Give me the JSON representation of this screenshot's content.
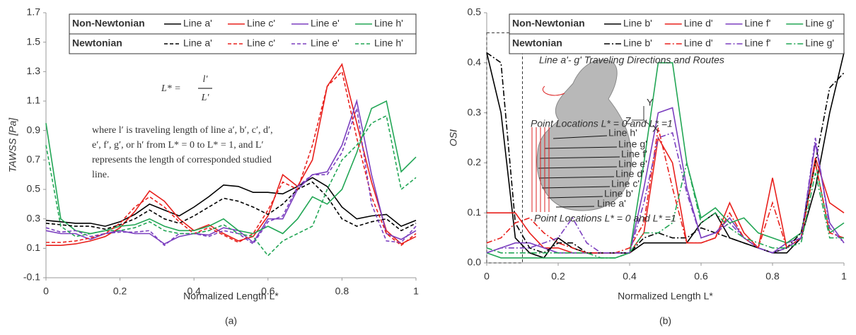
{
  "chart_data": [
    {
      "type": "line",
      "panel_label": "(a)",
      "xlabel": "Normalized Length L*",
      "ylabel": "TAWSS [Pa]",
      "xlim": [
        0,
        1
      ],
      "xticks": [
        0,
        0.2,
        0.4,
        0.6,
        0.8,
        1
      ],
      "ylim": [
        -0.1,
        1.7
      ],
      "yticks": [
        -0.1,
        0.1,
        0.3,
        0.5,
        0.7,
        0.9,
        1.1,
        1.3,
        1.5,
        1.7
      ],
      "x": [
        0,
        0.04,
        0.08,
        0.12,
        0.16,
        0.2,
        0.24,
        0.28,
        0.32,
        0.36,
        0.4,
        0.44,
        0.48,
        0.52,
        0.56,
        0.6,
        0.64,
        0.68,
        0.72,
        0.76,
        0.8,
        0.84,
        0.88,
        0.92,
        0.96,
        1
      ],
      "groups": [
        {
          "name": "Non-Newtonian",
          "dash": "solid",
          "series": [
            {
              "name": "Line a'",
              "color": "#000000",
              "values": [
                0.29,
                0.28,
                0.27,
                0.27,
                0.25,
                0.28,
                0.33,
                0.4,
                0.36,
                0.32,
                0.38,
                0.45,
                0.53,
                0.52,
                0.48,
                0.48,
                0.47,
                0.52,
                0.58,
                0.52,
                0.38,
                0.3,
                0.32,
                0.33,
                0.25,
                0.29
              ]
            },
            {
              "name": "Line c'",
              "color": "#e8201c",
              "values": [
                0.12,
                0.12,
                0.13,
                0.15,
                0.18,
                0.24,
                0.35,
                0.49,
                0.42,
                0.3,
                0.22,
                0.26,
                0.2,
                0.15,
                0.18,
                0.32,
                0.6,
                0.52,
                0.7,
                1.2,
                1.35,
                0.95,
                0.55,
                0.22,
                0.13,
                0.18
              ]
            },
            {
              "name": "Line e'",
              "color": "#7b3fbf",
              "values": [
                0.22,
                0.2,
                0.2,
                0.16,
                0.2,
                0.22,
                0.2,
                0.2,
                0.13,
                0.18,
                0.2,
                0.19,
                0.24,
                0.22,
                0.14,
                0.3,
                0.3,
                0.5,
                0.6,
                0.62,
                0.8,
                1.1,
                0.6,
                0.2,
                0.16,
                0.22
              ]
            },
            {
              "name": "Line h'",
              "color": "#22a655",
              "values": [
                0.95,
                0.3,
                0.22,
                0.2,
                0.22,
                0.25,
                0.26,
                0.3,
                0.25,
                0.22,
                0.22,
                0.25,
                0.3,
                0.22,
                0.2,
                0.25,
                0.2,
                0.3,
                0.45,
                0.4,
                0.5,
                0.75,
                1.05,
                1.1,
                0.62,
                0.72
              ]
            }
          ]
        },
        {
          "name": "Newtonian",
          "dash": "dash",
          "series": [
            {
              "name": "Line a'",
              "color": "#000000",
              "values": [
                0.27,
                0.26,
                0.25,
                0.25,
                0.23,
                0.26,
                0.3,
                0.36,
                0.3,
                0.27,
                0.32,
                0.38,
                0.44,
                0.42,
                0.38,
                0.33,
                0.4,
                0.5,
                0.55,
                0.45,
                0.3,
                0.25,
                0.28,
                0.3,
                0.22,
                0.27
              ]
            },
            {
              "name": "Line c'",
              "color": "#e8201c",
              "values": [
                0.14,
                0.14,
                0.15,
                0.17,
                0.2,
                0.27,
                0.38,
                0.45,
                0.38,
                0.28,
                0.2,
                0.24,
                0.19,
                0.14,
                0.2,
                0.36,
                0.55,
                0.5,
                0.8,
                1.2,
                1.3,
                0.85,
                0.45,
                0.2,
                0.12,
                0.2
              ]
            },
            {
              "name": "Line e'",
              "color": "#7b3fbf",
              "values": [
                0.24,
                0.21,
                0.22,
                0.18,
                0.2,
                0.21,
                0.21,
                0.22,
                0.12,
                0.2,
                0.2,
                0.18,
                0.22,
                0.2,
                0.13,
                0.28,
                0.32,
                0.52,
                0.6,
                0.6,
                0.75,
                1.05,
                0.4,
                0.15,
                0.14,
                0.25
              ]
            },
            {
              "name": "Line h'",
              "color": "#22a655",
              "values": [
                0.8,
                0.25,
                0.18,
                0.2,
                0.22,
                0.22,
                0.24,
                0.28,
                0.22,
                0.2,
                0.2,
                0.22,
                0.26,
                0.2,
                0.18,
                0.05,
                0.15,
                0.2,
                0.25,
                0.5,
                0.7,
                0.8,
                0.95,
                1.0,
                0.5,
                0.58
              ]
            }
          ]
        }
      ],
      "formula": {
        "lhs": "L* =",
        "num": "l′",
        "den": "L′"
      },
      "note_lines": [
        "where l′ is traveling length of line a′, b′, c′, d′,",
        "e′, f′, g′, or h′ from L* = 0 to L* = 1, and L′",
        "represents the length of corresponded studied",
        "line."
      ]
    },
    {
      "type": "line",
      "panel_label": "(b)",
      "xlabel": "Normalized Length L*",
      "ylabel": "OSI",
      "xlim": [
        0,
        1
      ],
      "xticks": [
        0,
        0.2,
        0.4,
        0.6,
        0.8,
        1
      ],
      "ylim": [
        0,
        0.5
      ],
      "yticks": [
        {
          "value": 0,
          "label": "0.0"
        },
        0.1,
        0.2,
        0.3,
        0.4,
        0.5
      ],
      "x": [
        0,
        0.04,
        0.08,
        0.12,
        0.16,
        0.2,
        0.24,
        0.28,
        0.32,
        0.36,
        0.4,
        0.44,
        0.48,
        0.52,
        0.56,
        0.6,
        0.64,
        0.68,
        0.72,
        0.76,
        0.8,
        0.84,
        0.88,
        0.92,
        0.96,
        1
      ],
      "groups": [
        {
          "name": "Non-Newtonian",
          "dash": "solid",
          "series": [
            {
              "name": "Line b'",
              "color": "#000000",
              "values": [
                0.42,
                0.3,
                0.05,
                0.02,
                0.01,
                0.05,
                0.03,
                0.02,
                0.02,
                0.02,
                0.02,
                0.04,
                0.04,
                0.04,
                0.04,
                0.08,
                0.1,
                0.05,
                0.04,
                0.03,
                0.02,
                0.02,
                0.05,
                0.15,
                0.3,
                0.42
              ]
            },
            {
              "name": "Line d'",
              "color": "#e8201c",
              "values": [
                0.1,
                0.1,
                0.1,
                0.06,
                0.03,
                0.03,
                0.02,
                0.02,
                0.02,
                0.02,
                0.02,
                0.06,
                0.25,
                0.2,
                0.04,
                0.04,
                0.05,
                0.12,
                0.06,
                0.03,
                0.17,
                0.03,
                0.05,
                0.21,
                0.12,
                0.1
              ]
            },
            {
              "name": "Line f'",
              "color": "#7b3fbf",
              "values": [
                0.02,
                0.03,
                0.04,
                0.04,
                0.03,
                0.02,
                0.02,
                0.02,
                0.02,
                0.02,
                0.02,
                0.15,
                0.3,
                0.31,
                0.15,
                0.05,
                0.06,
                0.09,
                0.05,
                0.03,
                0.02,
                0.04,
                0.05,
                0.24,
                0.08,
                0.04
              ]
            },
            {
              "name": "Line g'",
              "color": "#22a655",
              "values": [
                0.02,
                0.01,
                0.01,
                0.01,
                0.01,
                0.01,
                0.01,
                0.01,
                0.01,
                0.01,
                0.02,
                0.2,
                0.4,
                0.4,
                0.2,
                0.09,
                0.11,
                0.08,
                0.09,
                0.06,
                0.05,
                0.04,
                0.06,
                0.2,
                0.06,
                0.08
              ]
            }
          ]
        },
        {
          "name": "Newtonian",
          "dash": "dashdot",
          "series": [
            {
              "name": "Line b'",
              "color": "#000000",
              "values": [
                0.42,
                0.4,
                0.08,
                0.03,
                0.02,
                0.04,
                0.04,
                0.02,
                0.02,
                0.02,
                0.02,
                0.05,
                0.06,
                0.05,
                0.05,
                0.07,
                0.06,
                0.05,
                0.04,
                0.03,
                0.02,
                0.03,
                0.06,
                0.2,
                0.35,
                0.38
              ]
            },
            {
              "name": "Line d'",
              "color": "#e8201c",
              "values": [
                0.04,
                0.05,
                0.08,
                0.09,
                0.06,
                0.04,
                0.03,
                0.02,
                0.02,
                0.02,
                0.03,
                0.08,
                0.27,
                0.15,
                0.04,
                0.04,
                0.05,
                0.1,
                0.05,
                0.03,
                0.12,
                0.03,
                0.05,
                0.2,
                0.06,
                0.05
              ]
            },
            {
              "name": "Line f'",
              "color": "#7b3fbf",
              "values": [
                0.02,
                0.03,
                0.03,
                0.03,
                0.04,
                0.05,
                0.09,
                0.04,
                0.02,
                0.02,
                0.02,
                0.12,
                0.25,
                0.26,
                0.14,
                0.05,
                0.06,
                0.08,
                0.05,
                0.03,
                0.02,
                0.03,
                0.05,
                0.25,
                0.07,
                0.04
              ]
            },
            {
              "name": "Line g'",
              "color": "#22a655",
              "values": [
                0.03,
                0.02,
                0.02,
                0.02,
                0.02,
                0.02,
                0.02,
                0.02,
                0.01,
                0.01,
                0.02,
                0.06,
                0.06,
                0.08,
                0.2,
                0.08,
                0.1,
                0.07,
                0.05,
                0.04,
                0.03,
                0.03,
                0.04,
                0.18,
                0.05,
                0.05
              ]
            }
          ]
        }
      ],
      "highlight_box": {
        "x": [
          0,
          0.1
        ],
        "y": [
          0,
          0.46
        ]
      },
      "inset": {
        "title": "Line a'- g' Traveling Directions and Routes",
        "point_label_top": "Point Locations L* = 0 and L* =1",
        "point_label_bottom": "Point Locations L* = 0 and L* =1",
        "line_labels": [
          "Line h'",
          "Line g'",
          "Line f'",
          "Line e'",
          "Line d'",
          "Line c'",
          "Line b'",
          "Line a'"
        ],
        "axes": [
          "Y",
          "Z",
          "X"
        ]
      }
    }
  ]
}
